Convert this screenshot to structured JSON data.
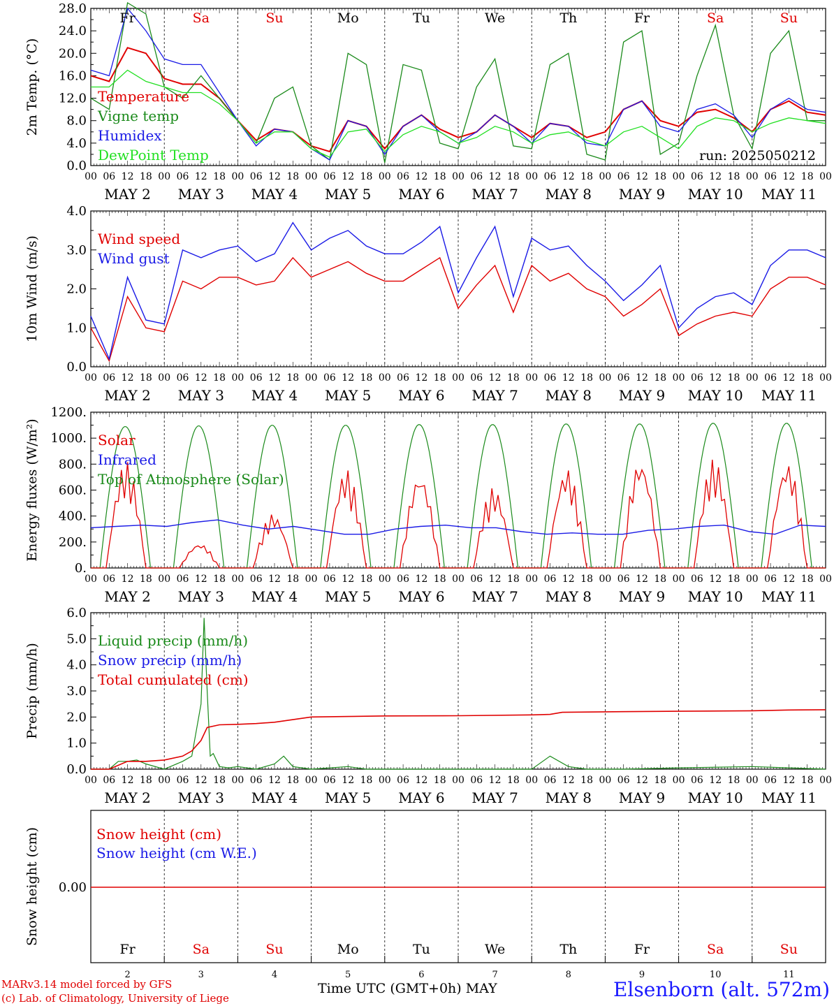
{
  "run_label": "run: 2025050212",
  "days": [
    "Fr",
    "Sa",
    "Su",
    "Mo",
    "Tu",
    "We",
    "Th",
    "Fr",
    "Sa",
    "Su"
  ],
  "day_colors": [
    "#000000",
    "#e00000",
    "#e00000",
    "#000000",
    "#000000",
    "#000000",
    "#000000",
    "#000000",
    "#e00000",
    "#e00000"
  ],
  "dates": [
    "MAY  2",
    "MAY  3",
    "MAY  4",
    "MAY  5",
    "MAY  6",
    "MAY  7",
    "MAY  8",
    "MAY  9",
    "MAY 10",
    "MAY 11"
  ],
  "day_numbers": [
    "2",
    "3",
    "4",
    "5",
    "6",
    "7",
    "8",
    "9",
    "10",
    "11"
  ],
  "hour_ticks": [
    "00",
    "06",
    "12",
    "18"
  ],
  "colors": {
    "red": "#e00000",
    "green": "#1a8a1a",
    "blue": "#1a1ae6",
    "lightgreen": "#22e022"
  },
  "footer": {
    "credit1": "MARv3.14 model forced by GFS",
    "credit2": "(c) Lab. of Climatology, University of Liege",
    "xaxis": "Time UTC (GMT+0h) MAY",
    "station": "Elsenborn (alt. 572m)"
  },
  "chart_data": [
    {
      "type": "line",
      "ylabel": "2m Temp. (°C)",
      "ylim": [
        0,
        28
      ],
      "yticks": [
        "0.0",
        "4.0",
        "8.0",
        "12.0",
        "16.0",
        "20.0",
        "24.0",
        "28.0"
      ],
      "x_hours": [
        0,
        6,
        12,
        18,
        24,
        30,
        36,
        42,
        48,
        54,
        60,
        66,
        72,
        78,
        84,
        90,
        96,
        102,
        108,
        114,
        120,
        126,
        132,
        138,
        144,
        150,
        156,
        162,
        168,
        174,
        180,
        186,
        192,
        198,
        204,
        210,
        216,
        222,
        228,
        234,
        240
      ],
      "series": [
        {
          "name": "Temperature",
          "color": "red",
          "values": [
            16,
            15,
            21,
            20,
            15.5,
            14.5,
            14.5,
            12,
            8,
            4.5,
            6.5,
            6,
            3.5,
            2.5,
            8,
            7,
            3,
            7,
            9,
            6.5,
            5,
            6,
            9,
            7,
            5,
            7.5,
            7,
            5,
            6,
            10,
            11.5,
            8,
            7,
            9.5,
            10,
            8.5,
            6,
            10,
            11.5,
            9.5,
            9
          ]
        },
        {
          "name": "Vigne temp",
          "color": "green",
          "values": [
            12,
            10,
            29,
            27,
            14,
            12,
            16,
            12,
            8,
            4,
            12,
            14,
            3.5,
            1,
            20,
            18,
            0.5,
            18,
            17,
            4,
            3,
            14,
            19,
            3.5,
            3,
            18,
            20,
            2,
            1,
            22,
            24,
            2,
            4,
            16,
            25,
            9,
            3,
            20,
            24,
            8,
            8
          ]
        },
        {
          "name": "Humidex",
          "color": "blue",
          "values": [
            17,
            16,
            28,
            24,
            19,
            18,
            18,
            13,
            8,
            3.5,
            6.5,
            6,
            3,
            1,
            8,
            7,
            2,
            7,
            9,
            6,
            4,
            6,
            9,
            7,
            4,
            7.5,
            7,
            4,
            3.5,
            10,
            11.5,
            7,
            6,
            10,
            11,
            9,
            5,
            10,
            12,
            10,
            9.5
          ]
        },
        {
          "name": "DewPoint Temp",
          "color": "lightgreen",
          "values": [
            14,
            14,
            17,
            15,
            14,
            13,
            13,
            11,
            8,
            4,
            6,
            6,
            3,
            1.5,
            6,
            6.5,
            2.5,
            5.5,
            7,
            6,
            4,
            5,
            7,
            6,
            4,
            5.5,
            6,
            4.5,
            3.5,
            6,
            7,
            5,
            3,
            7,
            8.5,
            8,
            6,
            7.5,
            8.5,
            8,
            7.5
          ]
        }
      ]
    },
    {
      "type": "line",
      "ylabel": "10m Wind (m/s)",
      "ylim": [
        0,
        4
      ],
      "yticks": [
        "0.0",
        "1.0",
        "2.0",
        "3.0",
        "4.0"
      ],
      "x_hours": [
        0,
        6,
        12,
        18,
        24,
        30,
        36,
        42,
        48,
        54,
        60,
        66,
        72,
        78,
        84,
        90,
        96,
        102,
        108,
        114,
        120,
        126,
        132,
        138,
        144,
        150,
        156,
        162,
        168,
        174,
        180,
        186,
        192,
        198,
        204,
        210,
        216,
        222,
        228,
        234,
        240
      ],
      "series": [
        {
          "name": "Wind speed",
          "color": "red",
          "values": [
            1.0,
            0.15,
            1.8,
            1.0,
            0.9,
            2.2,
            2.0,
            2.3,
            2.3,
            2.1,
            2.2,
            2.8,
            2.3,
            2.5,
            2.7,
            2.4,
            2.2,
            2.2,
            2.5,
            2.8,
            1.5,
            2.1,
            2.6,
            1.4,
            2.6,
            2.2,
            2.4,
            2.0,
            1.8,
            1.3,
            1.6,
            2.0,
            0.8,
            1.1,
            1.3,
            1.4,
            1.3,
            2.0,
            2.3,
            2.3,
            2.1
          ]
        },
        {
          "name": "Wind gust",
          "color": "blue",
          "values": [
            1.3,
            0.2,
            2.3,
            1.2,
            1.1,
            3.0,
            2.8,
            3.0,
            3.1,
            2.7,
            2.9,
            3.7,
            3.0,
            3.3,
            3.5,
            3.1,
            2.9,
            2.9,
            3.2,
            3.6,
            1.9,
            2.8,
            3.6,
            1.8,
            3.3,
            3.0,
            3.1,
            2.6,
            2.2,
            1.7,
            2.1,
            2.6,
            1.0,
            1.5,
            1.8,
            1.9,
            1.6,
            2.6,
            3.0,
            3.0,
            2.8
          ]
        }
      ]
    },
    {
      "type": "line",
      "ylabel": "Energy fluxes (W/m²)",
      "ylim": [
        0,
        1200
      ],
      "yticks": [
        "0.",
        "200.",
        "400.",
        "600.",
        "800.",
        "1000.",
        "1200."
      ],
      "series": [
        {
          "name": "Solar",
          "color": "red",
          "peaks": [
            820,
            190,
            420,
            760,
            730,
            620,
            770,
            840,
            840,
            820
          ]
        },
        {
          "name": "Infrared",
          "color": "blue",
          "values": [
            310,
            320,
            330,
            320,
            350,
            370,
            330,
            300,
            320,
            290,
            260,
            260,
            300,
            320,
            330,
            310,
            310,
            280,
            260,
            270,
            260,
            260,
            290,
            300,
            320,
            330,
            280,
            260,
            330,
            320
          ]
        },
        {
          "name": "Top of Atmosphere (Solar)",
          "color": "green",
          "peaks": [
            1090,
            1095,
            1100,
            1100,
            1105,
            1105,
            1110,
            1110,
            1115,
            1115
          ]
        }
      ]
    },
    {
      "type": "line",
      "ylabel": "Precip (mm/h)",
      "ylim": [
        0,
        6
      ],
      "yticks": [
        "0.0",
        "1.0",
        "2.0",
        "3.0",
        "4.0",
        "5.0",
        "6.0"
      ],
      "series": [
        {
          "name": "Liquid precip (mm/h)",
          "color": "green",
          "x_hours": [
            0,
            6,
            9,
            12,
            15,
            18,
            24,
            30,
            33,
            36,
            37,
            38,
            39,
            40,
            42,
            45,
            48,
            54,
            60,
            63,
            66,
            69,
            72,
            84,
            90,
            96,
            120,
            144,
            150,
            156,
            162,
            168,
            174,
            192,
            216,
            228,
            240
          ],
          "values": [
            0,
            0,
            0.3,
            0.3,
            0.35,
            0.2,
            0,
            0.3,
            0.5,
            2.5,
            5.8,
            3.0,
            0.5,
            0.6,
            0.1,
            0.05,
            0.1,
            0,
            0.2,
            0.5,
            0.1,
            0.05,
            0,
            0.1,
            0,
            0,
            0,
            0,
            0.5,
            0.1,
            0,
            0,
            0,
            0.05,
            0.1,
            0.05,
            0
          ]
        },
        {
          "name": "Snow precip (mm/h)",
          "color": "blue",
          "values": []
        },
        {
          "name": "Total cumulated (cm)",
          "color": "red",
          "x_hours": [
            0,
            6,
            12,
            18,
            24,
            30,
            33,
            36,
            38,
            42,
            48,
            54,
            60,
            66,
            72,
            84,
            96,
            120,
            144,
            150,
            154,
            168,
            192,
            216,
            228,
            240
          ],
          "values": [
            0,
            0,
            0.3,
            0.3,
            0.35,
            0.5,
            0.7,
            1.1,
            1.6,
            1.7,
            1.72,
            1.75,
            1.8,
            1.9,
            2.0,
            2.02,
            2.04,
            2.05,
            2.08,
            2.1,
            2.18,
            2.2,
            2.22,
            2.24,
            2.27,
            2.28
          ]
        }
      ]
    },
    {
      "type": "line",
      "ylabel": "Snow height (cm)",
      "yticks": [
        "0.00"
      ],
      "series": [
        {
          "name": "Snow height (cm)",
          "color": "red",
          "values": [
            0,
            0
          ]
        },
        {
          "name": "Snow height (cm W.E.)",
          "color": "blue",
          "values": [
            0,
            0
          ]
        }
      ]
    }
  ]
}
